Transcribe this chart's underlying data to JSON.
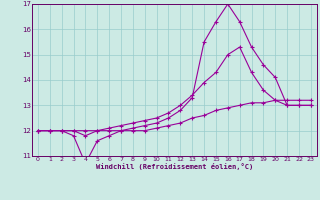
{
  "xlabel": "Windchill (Refroidissement éolien,°C)",
  "background_color": "#cceae4",
  "grid_color": "#99cccc",
  "line_color": "#990099",
  "xlim": [
    -0.5,
    23.5
  ],
  "ylim": [
    11,
    17
  ],
  "yticks": [
    11,
    12,
    13,
    14,
    15,
    16,
    17
  ],
  "xticks": [
    0,
    1,
    2,
    3,
    4,
    5,
    6,
    7,
    8,
    9,
    10,
    11,
    12,
    13,
    14,
    15,
    16,
    17,
    18,
    19,
    20,
    21,
    22,
    23
  ],
  "series1_x": [
    0,
    1,
    2,
    3,
    4,
    5,
    6,
    7,
    8,
    9,
    10,
    11,
    12,
    13,
    14,
    15,
    16,
    17,
    18,
    19,
    20,
    21,
    22,
    23
  ],
  "series1_y": [
    12.0,
    12.0,
    12.0,
    11.8,
    10.7,
    11.6,
    11.8,
    12.0,
    12.1,
    12.2,
    12.3,
    12.5,
    12.8,
    13.3,
    15.5,
    16.3,
    17.0,
    16.3,
    15.3,
    14.6,
    14.1,
    13.0,
    13.0,
    13.0
  ],
  "series2_x": [
    0,
    1,
    2,
    3,
    4,
    5,
    6,
    7,
    8,
    9,
    10,
    11,
    12,
    13,
    14,
    15,
    16,
    17,
    18,
    19,
    20,
    21,
    22,
    23
  ],
  "series2_y": [
    12.0,
    12.0,
    12.0,
    12.0,
    11.8,
    12.0,
    12.1,
    12.2,
    12.3,
    12.4,
    12.5,
    12.7,
    13.0,
    13.4,
    13.9,
    14.3,
    15.0,
    15.3,
    14.3,
    13.6,
    13.2,
    13.0,
    13.0,
    13.0
  ],
  "series3_x": [
    0,
    1,
    2,
    3,
    4,
    5,
    6,
    7,
    8,
    9,
    10,
    11,
    12,
    13,
    14,
    15,
    16,
    17,
    18,
    19,
    20,
    21,
    22,
    23
  ],
  "series3_y": [
    12.0,
    12.0,
    12.0,
    12.0,
    12.0,
    12.0,
    12.0,
    12.0,
    12.0,
    12.0,
    12.1,
    12.2,
    12.3,
    12.5,
    12.6,
    12.8,
    12.9,
    13.0,
    13.1,
    13.1,
    13.2,
    13.2,
    13.2,
    13.2
  ]
}
